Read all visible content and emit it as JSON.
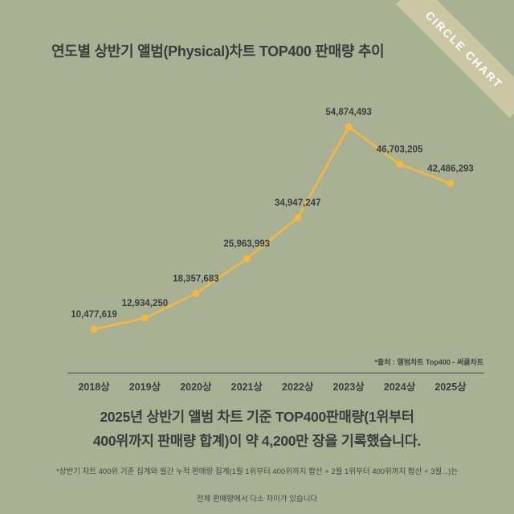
{
  "ribbon": {
    "label": "CIRCLE CHART"
  },
  "title": "연도별 상반기 앨범(Physical)차트 TOP400 판매량 추이",
  "chart_data": {
    "type": "line",
    "categories": [
      "2018상",
      "2019상",
      "2020상",
      "2021상",
      "2022상",
      "2023상",
      "2024상",
      "2025상"
    ],
    "values": [
      10477619,
      12934250,
      18357683,
      25963993,
      34947247,
      54874493,
      46703205,
      42486293
    ],
    "value_labels": [
      "10,477,619",
      "12,934,250",
      "18,357,683",
      "25,963,993",
      "34,947,247",
      "54,874,493",
      "46,703,205",
      "42,486,293"
    ],
    "title": "연도별 상반기 앨범(Physical)차트 TOP400 판매량 추이",
    "xlabel": "",
    "ylabel": "",
    "ylim": [
      10000000,
      56000000
    ],
    "grid": false,
    "legend": "none",
    "line_color": "#f3b843",
    "label_color": "#3e3e3e",
    "source": "*출처 : 앨범차트 Top400 - 써클차트"
  },
  "summary": {
    "line1": "2025년 상반기 앨범 차트 기준 TOP400판매량(1위부터",
    "line2": "400위까지 판매량 합계)이 약 4,200만 장을 기록했습니다."
  },
  "footnote": {
    "line1": "*상반기 차트 400위 기준 집계와 월간 누적 판매량 집계(1월 1위부터 400위까지 합산 + 2월 1위부터 400위까지 합산 + 3월...)는",
    "line2": "전체 판매량에서 다소 차이가 있습니다"
  },
  "colors": {
    "background": "#a8b194",
    "ribbon": "#cbc7a5",
    "text": "#3b3b3b"
  }
}
